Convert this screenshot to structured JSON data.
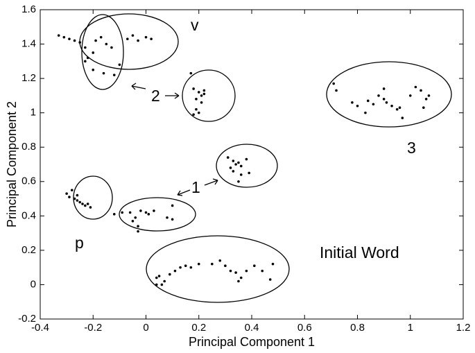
{
  "chart_data": {
    "type": "scatter",
    "x_label": "Principal Component 1",
    "y_label": "Principal Component 2",
    "annotations": [
      "v",
      "2",
      "1",
      "3",
      "p",
      "Initial Word"
    ],
    "color": "#000000",
    "xlim": [
      -0.4,
      1.2
    ],
    "ylim": [
      -0.2,
      1.6
    ],
    "xticks": [
      -0.4,
      -0.2,
      0,
      0.2,
      0.4,
      0.6,
      0.8,
      1,
      1.2
    ],
    "yticks": [
      -0.2,
      0,
      0.2,
      0.4,
      0.6,
      0.8,
      1,
      1.2,
      1.4,
      1.6
    ],
    "x": [
      -0.33,
      -0.31,
      -0.29,
      -0.27,
      -0.25,
      -0.23,
      -0.22,
      -0.23,
      -0.2,
      -0.19,
      -0.17,
      -0.15,
      -0.13,
      -0.2,
      -0.16,
      -0.12,
      -0.07,
      -0.05,
      -0.03,
      0.0,
      0.02,
      -0.1,
      0.17,
      0.18,
      0.2,
      0.21,
      0.22,
      0.21,
      0.19,
      0.18,
      0.2,
      0.22,
      0.19,
      0.71,
      0.72,
      0.78,
      0.8,
      0.84,
      0.86,
      0.88,
      0.9,
      0.91,
      0.93,
      0.95,
      0.97,
      0.96,
      1.0,
      1.02,
      1.04,
      1.06,
      1.07,
      1.05,
      0.9,
      0.83,
      0.31,
      0.33,
      0.34,
      0.35,
      0.36,
      0.33,
      0.36,
      0.35,
      0.38,
      0.39,
      0.32,
      -0.3,
      -0.29,
      -0.27,
      -0.26,
      -0.25,
      -0.24,
      -0.23,
      -0.22,
      -0.28,
      -0.26,
      -0.21,
      -0.12,
      -0.09,
      -0.06,
      -0.04,
      -0.02,
      0.0,
      0.01,
      0.03,
      -0.03,
      -0.03,
      0.08,
      0.1,
      0.1,
      -0.05,
      0.04,
      0.04,
      0.05,
      0.07,
      0.09,
      0.11,
      0.13,
      0.15,
      0.17,
      0.2,
      0.25,
      0.28,
      0.3,
      0.32,
      0.34,
      0.36,
      0.38,
      0.41,
      0.44,
      0.47,
      0.48,
      0.35,
      0.06
    ],
    "values": [
      1.45,
      1.44,
      1.43,
      1.42,
      1.41,
      1.38,
      1.32,
      1.3,
      1.35,
      1.42,
      1.44,
      1.4,
      1.38,
      1.25,
      1.23,
      1.22,
      1.43,
      1.45,
      1.42,
      1.44,
      1.43,
      1.28,
      1.23,
      1.14,
      1.12,
      1.1,
      1.11,
      1.06,
      1.02,
      0.99,
      1.0,
      1.13,
      1.08,
      1.17,
      1.13,
      1.06,
      1.04,
      1.07,
      1.05,
      1.1,
      1.08,
      1.06,
      1.04,
      1.02,
      0.97,
      1.03,
      1.1,
      1.15,
      1.13,
      1.08,
      1.1,
      1.03,
      1.14,
      1.0,
      0.74,
      0.72,
      0.7,
      0.71,
      0.69,
      0.66,
      0.64,
      0.6,
      0.73,
      0.65,
      0.68,
      0.53,
      0.51,
      0.5,
      0.49,
      0.48,
      0.47,
      0.46,
      0.47,
      0.55,
      0.52,
      0.45,
      0.41,
      0.42,
      0.42,
      0.39,
      0.43,
      0.42,
      0.41,
      0.43,
      0.34,
      0.31,
      0.39,
      0.38,
      0.46,
      0.37,
      0.04,
      0.0,
      0.05,
      0.02,
      0.06,
      0.08,
      0.1,
      0.11,
      0.1,
      0.12,
      0.12,
      0.14,
      0.11,
      0.08,
      0.07,
      0.04,
      0.08,
      0.11,
      0.08,
      0.03,
      0.12,
      0.02,
      0.0
    ]
  }
}
